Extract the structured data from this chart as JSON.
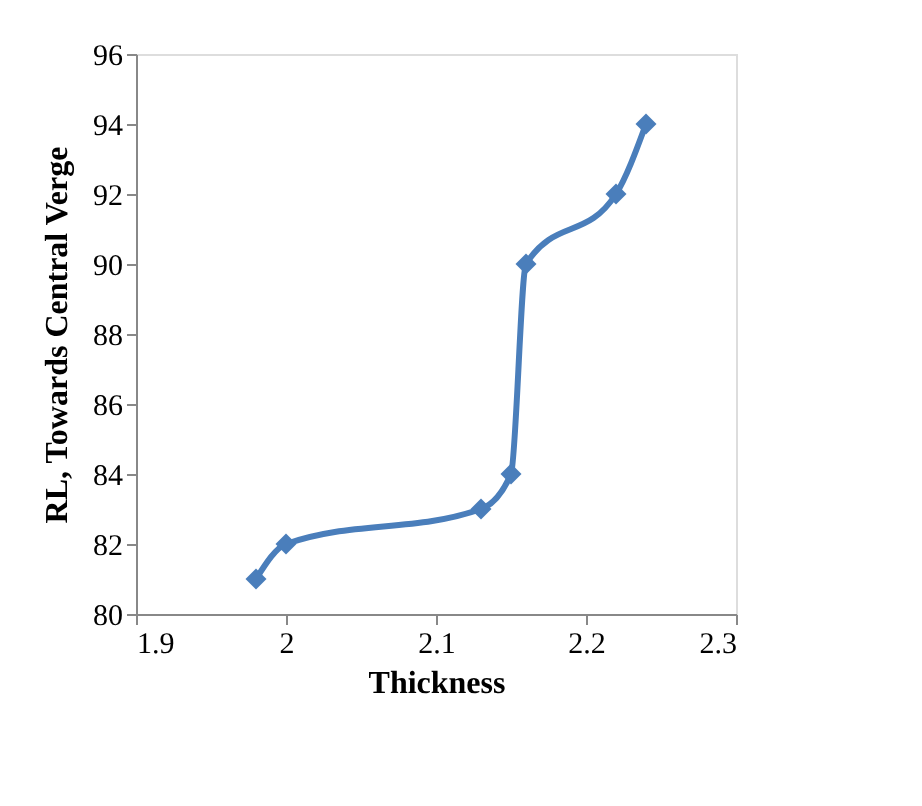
{
  "chart_data": {
    "type": "line",
    "xlabel": "Thickness",
    "ylabel": "RL, Towards Central  Verge",
    "x": [
      1.98,
      2.0,
      2.13,
      2.15,
      2.16,
      2.22,
      2.24
    ],
    "series": [
      {
        "color": "#4a7ebb",
        "values": [
          81,
          82,
          83,
          84,
          90,
          92,
          94
        ]
      }
    ],
    "xlim": [
      1.9,
      2.3
    ],
    "xticks": [
      1.9,
      2,
      2.1,
      2.2,
      2.3
    ],
    "ylim": [
      80,
      96
    ],
    "yticks": [
      80,
      82,
      84,
      86,
      88,
      90,
      92,
      94,
      96
    ],
    "grid": false,
    "marker": "diamond",
    "line_style": "solid"
  }
}
